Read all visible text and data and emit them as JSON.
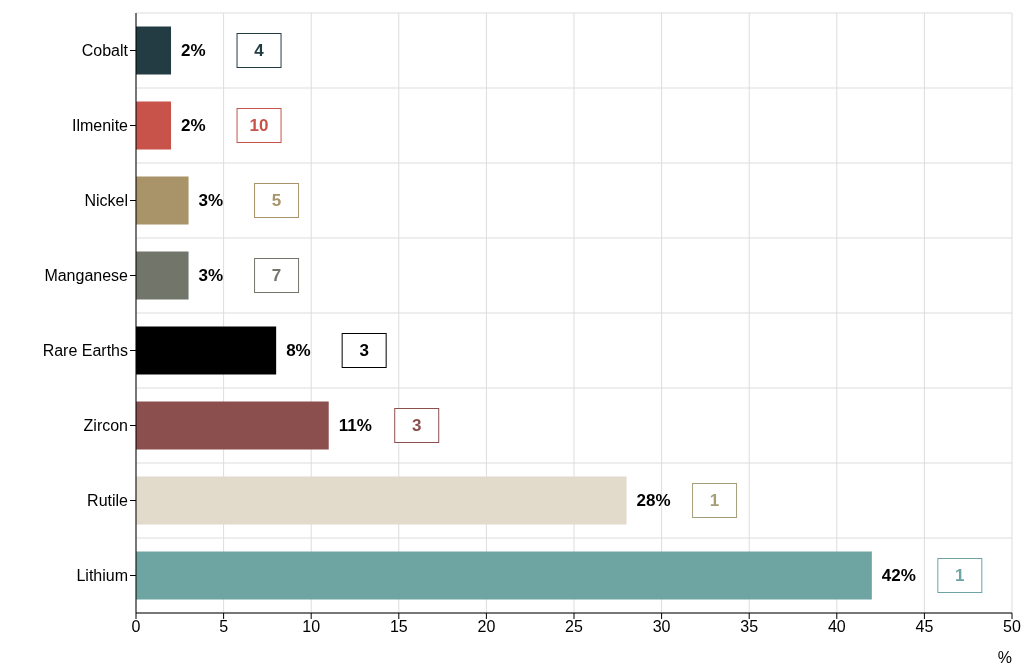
{
  "chart_data": {
    "type": "bar",
    "orientation": "horizontal",
    "xlabel": "%",
    "categories": [
      "Cobalt",
      "Ilmenite",
      "Nickel",
      "Manganese",
      "Rare Earths",
      "Zircon",
      "Rutile",
      "Lithium"
    ],
    "values": [
      2,
      2,
      3,
      3,
      8,
      11,
      28,
      42
    ],
    "colors": [
      "#233c43",
      "#c8534b",
      "#a89468",
      "#72766a",
      "#000000",
      "#8b4f4e",
      "#e2dacb",
      "#6ea5a3"
    ],
    "value_labels": [
      "2%",
      "2%",
      "3%",
      "3%",
      "8%",
      "11%",
      "28%",
      "42%"
    ],
    "annotations": [
      "4",
      "10",
      "5",
      "7",
      "3",
      "3",
      "1",
      "1"
    ],
    "xlim": [
      0,
      50
    ],
    "xticks": [
      0,
      5,
      10,
      15,
      20,
      25,
      30,
      35,
      40,
      45,
      50
    ],
    "grid": true
  }
}
